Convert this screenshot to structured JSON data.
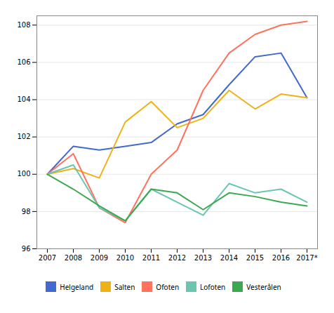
{
  "chart_data": {
    "type": "line",
    "categories": [
      "2007",
      "2008",
      "2009",
      "2010",
      "2011",
      "2012",
      "2013",
      "2014",
      "2015",
      "2016",
      "2017*"
    ],
    "series": [
      {
        "name": "Helgeland",
        "values": [
          100,
          101.5,
          101.3,
          101.5,
          101.7,
          102.7,
          103.2,
          104.8,
          106.3,
          106.5,
          104.1
        ]
      },
      {
        "name": "Salten",
        "values": [
          100,
          100.3,
          99.8,
          102.8,
          103.9,
          102.5,
          103.0,
          104.5,
          103.5,
          104.3,
          104.1
        ]
      },
      {
        "name": "Ofoten",
        "values": [
          100,
          101.1,
          98.2,
          97.4,
          100.0,
          101.3,
          104.5,
          106.5,
          107.5,
          108.0,
          108.2
        ]
      },
      {
        "name": "Lofoten",
        "values": [
          100,
          100.5,
          98.2,
          97.5,
          99.2,
          98.5,
          97.8,
          99.5,
          99.0,
          99.2,
          98.5
        ]
      },
      {
        "name": "Vesterålen",
        "values": [
          100,
          99.2,
          98.3,
          97.5,
          99.2,
          99.0,
          98.1,
          99.0,
          98.8,
          98.5,
          98.3
        ]
      }
    ],
    "ylim": [
      96,
      108.5
    ],
    "yticks": [
      96,
      98,
      100,
      102,
      104,
      106,
      108
    ],
    "grid": true,
    "legend": "bottom"
  }
}
